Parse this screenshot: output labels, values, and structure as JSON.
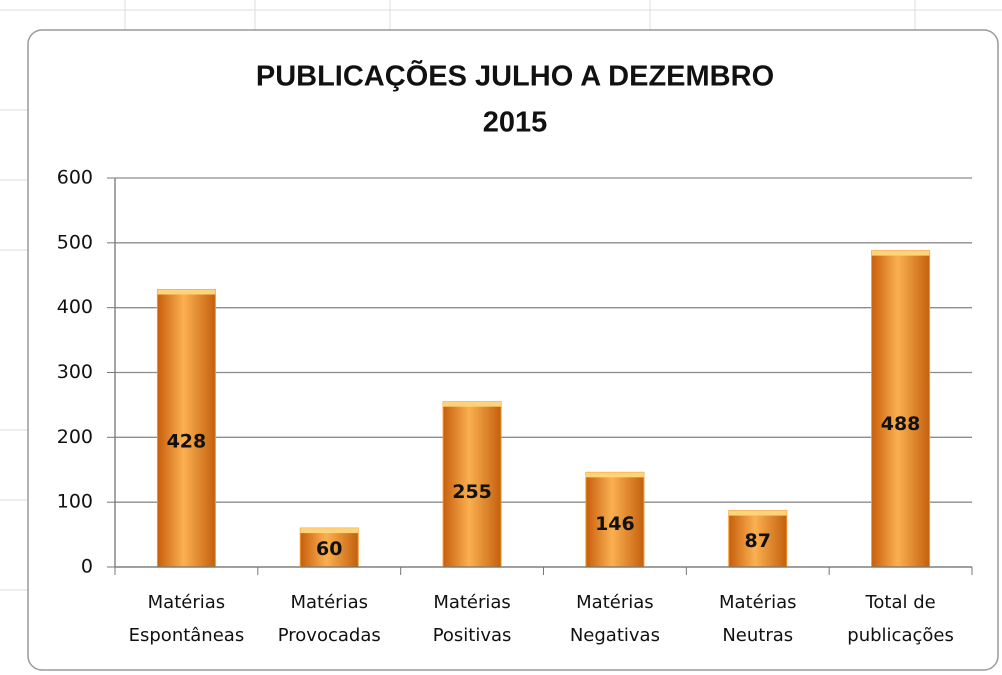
{
  "chart_data": {
    "type": "bar",
    "title": [
      "PUBLICAÇÕES JULHO A DEZEMBRO",
      "2015"
    ],
    "categories": [
      [
        "Matérias",
        "Espontâneas"
      ],
      [
        "Matérias",
        "Provocadas"
      ],
      [
        "Matérias",
        "Positivas"
      ],
      [
        "Matérias",
        "Negativas"
      ],
      [
        "Matérias",
        "Neutras"
      ],
      [
        "Total de",
        "publicações"
      ]
    ],
    "values": [
      428,
      60,
      255,
      146,
      87,
      488
    ],
    "color": "#f39a2c",
    "ylim": [
      0,
      600
    ],
    "yticks": [
      0,
      100,
      200,
      300,
      400,
      500,
      600
    ],
    "grid": true
  }
}
